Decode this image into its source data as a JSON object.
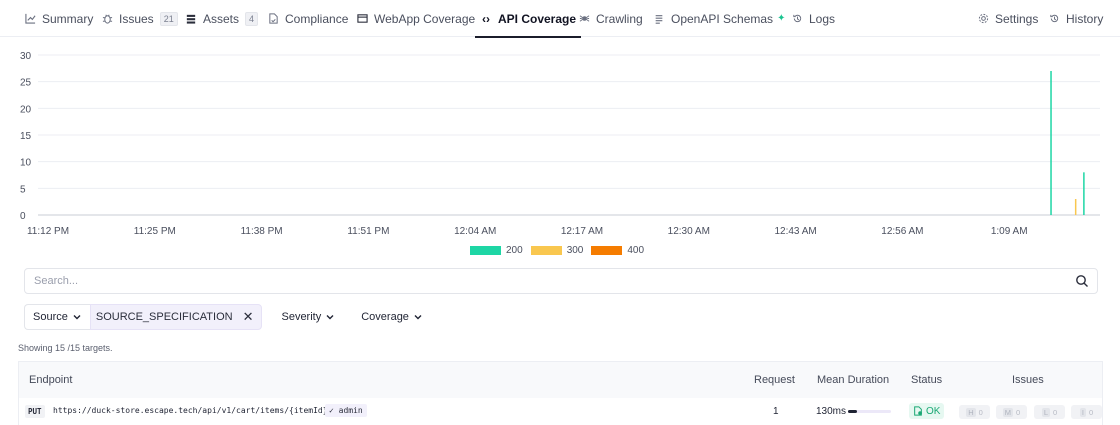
{
  "tabs": [
    {
      "label": "Summary",
      "icon": "chart-line-icon",
      "count": ""
    },
    {
      "label": "Issues",
      "icon": "bug-icon",
      "count": "21"
    },
    {
      "label": "Assets",
      "icon": "database-icon",
      "count": "4"
    },
    {
      "label": "Compliance",
      "icon": "document-check-icon",
      "count": ""
    },
    {
      "label": "WebApp Coverage",
      "icon": "browser-icon",
      "count": ""
    },
    {
      "label": "API Coverage",
      "icon": "code-icon",
      "count": "",
      "active": true
    },
    {
      "label": "Crawling",
      "icon": "spider-icon",
      "count": ""
    },
    {
      "label": "OpenAPI Schemas",
      "icon": "list-icon",
      "count": ""
    },
    {
      "label": "Logs",
      "icon": "history-icon",
      "count": ""
    }
  ],
  "right_tabs": [
    {
      "label": "Settings",
      "icon": "gear-icon"
    },
    {
      "label": "History",
      "icon": "history-icon"
    }
  ],
  "chart_data": {
    "type": "bar",
    "x": [
      "11:12 PM",
      "11:25 PM",
      "11:38 PM",
      "11:51 PM",
      "12:04 AM",
      "12:17 AM",
      "12:30 AM",
      "12:43 AM",
      "12:56 AM",
      "1:09 AM"
    ],
    "ylim": [
      0,
      30
    ],
    "yticks": [
      0,
      5,
      10,
      15,
      20,
      25,
      30
    ],
    "grid": true,
    "legend_position": "bottom-center",
    "series": [
      {
        "name": "200",
        "color": "#1ed6a5",
        "points": [
          {
            "t": "1:14 AM",
            "v": 27
          },
          {
            "t": "1:18 AM",
            "v": 8
          }
        ]
      },
      {
        "name": "300",
        "color": "#f9c74f",
        "points": [
          {
            "t": "1:17 AM",
            "v": 3
          }
        ]
      },
      {
        "name": "400",
        "color": "#f57c00",
        "points": []
      }
    ]
  },
  "search": {
    "placeholder": "Search..."
  },
  "filters": {
    "source_label": "Source",
    "source_value": "SOURCE_SPECIFICATION",
    "severity_label": "Severity",
    "coverage_label": "Coverage"
  },
  "showing_text": "Showing 15 /15 targets.",
  "table": {
    "headers": {
      "endpoint": "Endpoint",
      "request": "Request",
      "mean_duration": "Mean Duration",
      "status": "Status",
      "issues": "Issues"
    },
    "rows": [
      {
        "method": "PUT",
        "url": "https://duck-store.escape.tech/api/v1/cart/items/{itemId}",
        "role": "✓ admin",
        "request": "1",
        "duration": "130ms",
        "duration_fraction": 0.2,
        "status": "OK",
        "issues": [
          {
            "level": "H",
            "count": "0"
          },
          {
            "level": "M",
            "count": "0"
          },
          {
            "level": "L",
            "count": "0"
          },
          {
            "level": "I",
            "count": "0"
          }
        ]
      }
    ]
  }
}
